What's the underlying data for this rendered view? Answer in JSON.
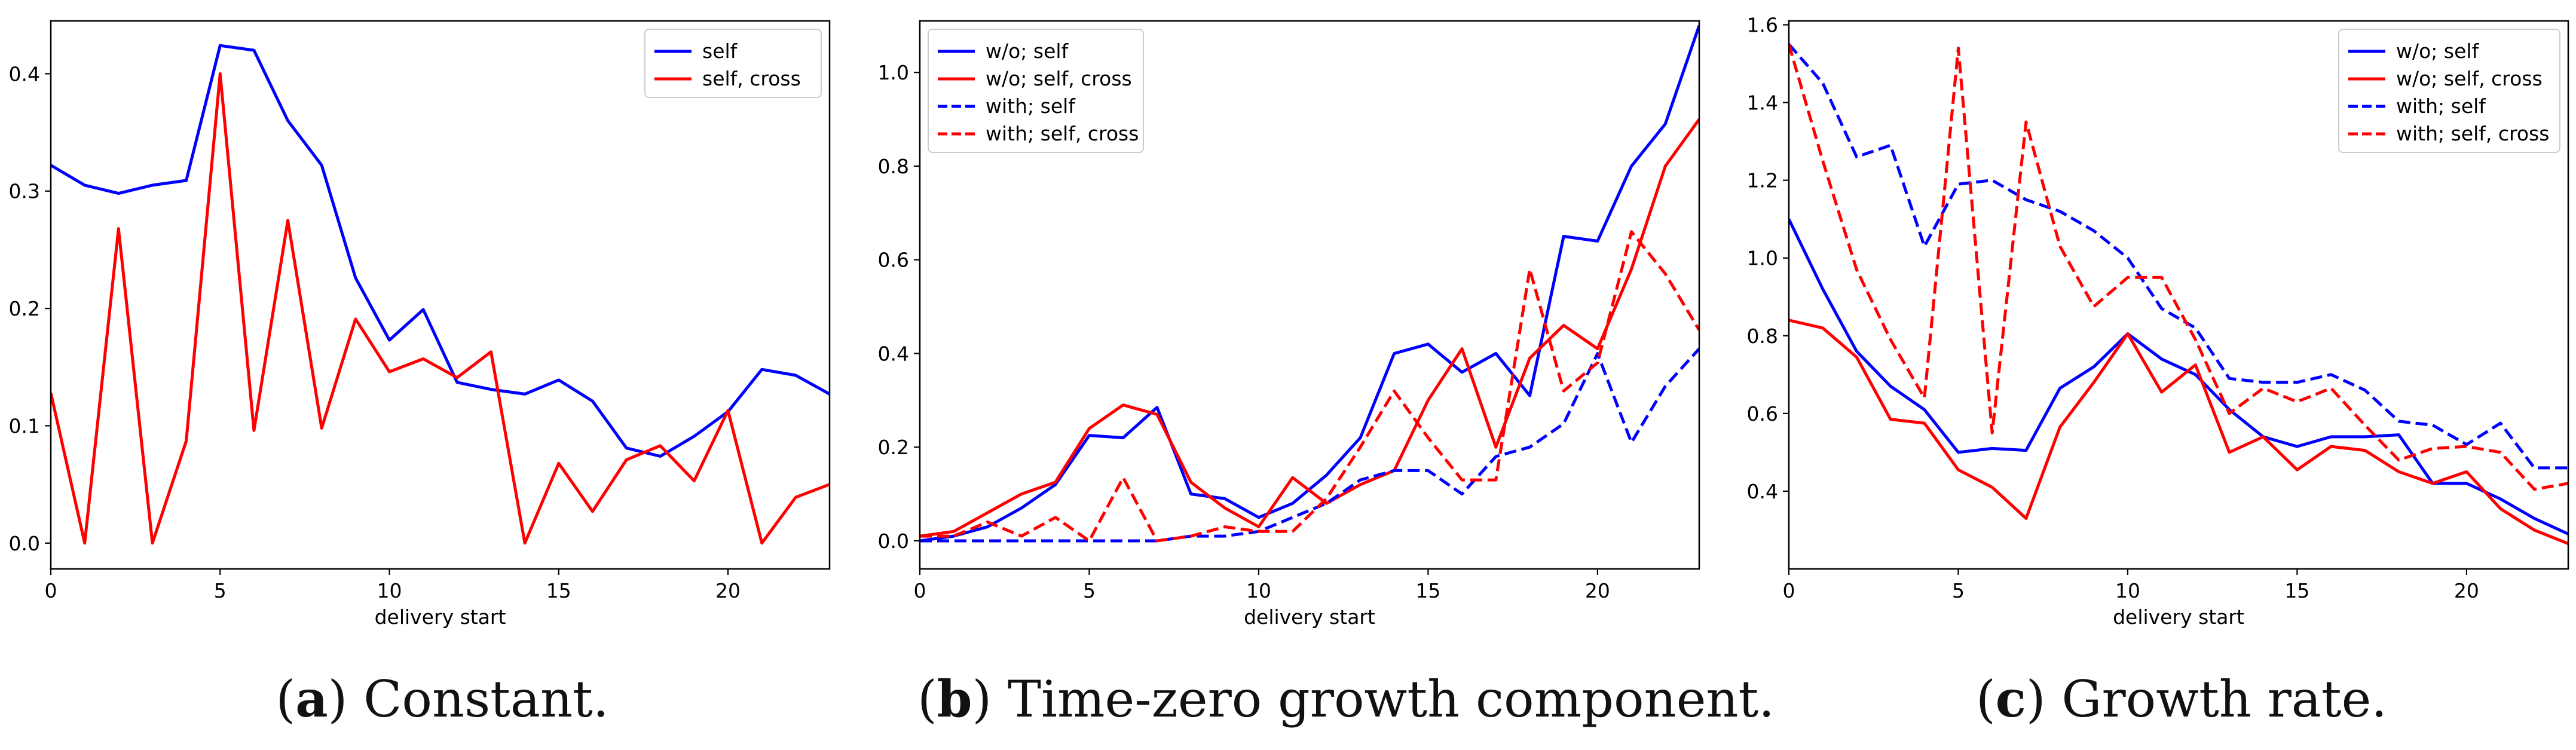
{
  "figure": {
    "captions": [
      {
        "label": "a",
        "text": " Constant."
      },
      {
        "label": "b",
        "text": " Time-zero growth component."
      },
      {
        "label": "c",
        "text": " Growth rate."
      }
    ]
  },
  "chart_data": [
    {
      "type": "line",
      "title": "",
      "xlabel": "delivery start",
      "ylabel": "",
      "xlim": [
        0,
        23
      ],
      "ylim": [
        -0.022,
        0.445
      ],
      "xticks": [
        0,
        5,
        10,
        15,
        20
      ],
      "yticks": [
        0.0,
        0.1,
        0.2,
        0.3,
        0.4
      ],
      "ytick_labels": [
        "0.0",
        "0.1",
        "0.2",
        "0.3",
        "0.4"
      ],
      "legend_position": "top-right",
      "x": [
        0,
        1,
        2,
        3,
        4,
        5,
        6,
        7,
        8,
        9,
        10,
        11,
        12,
        13,
        14,
        15,
        16,
        17,
        18,
        19,
        20,
        21,
        22,
        23
      ],
      "series": [
        {
          "name": "self",
          "color": "#0000ff",
          "dash": "solid",
          "values": [
            0.322,
            0.305,
            0.298,
            0.305,
            0.309,
            0.424,
            0.42,
            0.36,
            0.322,
            0.226,
            0.173,
            0.199,
            0.137,
            0.131,
            0.127,
            0.139,
            0.121,
            0.081,
            0.074,
            0.091,
            0.112,
            0.148,
            0.143,
            0.127
          ]
        },
        {
          "name": "self, cross",
          "color": "#ff0000",
          "dash": "solid",
          "values": [
            0.128,
            0.0,
            0.268,
            0.0,
            0.087,
            0.4,
            0.096,
            0.275,
            0.098,
            0.191,
            0.146,
            0.157,
            0.141,
            0.163,
            0.0,
            0.068,
            0.027,
            0.071,
            0.083,
            0.053,
            0.113,
            0.0,
            0.039,
            0.05
          ]
        }
      ]
    },
    {
      "type": "line",
      "title": "",
      "xlabel": "delivery start",
      "ylabel": "",
      "xlim": [
        0,
        23
      ],
      "ylim": [
        -0.06,
        1.11
      ],
      "xticks": [
        0,
        5,
        10,
        15,
        20
      ],
      "yticks": [
        0.0,
        0.2,
        0.4,
        0.6,
        0.8,
        1.0
      ],
      "ytick_labels": [
        "0.0",
        "0.2",
        "0.4",
        "0.6",
        "0.8",
        "1.0"
      ],
      "legend_position": "top-left",
      "x": [
        0,
        1,
        2,
        3,
        4,
        5,
        6,
        7,
        8,
        9,
        10,
        11,
        12,
        13,
        14,
        15,
        16,
        17,
        18,
        19,
        20,
        21,
        22,
        23
      ],
      "series": [
        {
          "name": "w/o; self",
          "color": "#0000ff",
          "dash": "solid",
          "values": [
            0.0,
            0.01,
            0.03,
            0.07,
            0.12,
            0.225,
            0.22,
            0.285,
            0.1,
            0.09,
            0.05,
            0.08,
            0.14,
            0.22,
            0.4,
            0.42,
            0.36,
            0.4,
            0.31,
            0.65,
            0.64,
            0.8,
            0.89,
            1.1
          ]
        },
        {
          "name": "w/o; self, cross",
          "color": "#ff0000",
          "dash": "solid",
          "values": [
            0.01,
            0.02,
            0.06,
            0.1,
            0.125,
            0.24,
            0.29,
            0.27,
            0.125,
            0.07,
            0.03,
            0.135,
            0.08,
            0.12,
            0.15,
            0.3,
            0.41,
            0.2,
            0.39,
            0.46,
            0.41,
            0.58,
            0.8,
            0.9
          ]
        },
        {
          "name": "with; self",
          "color": "#0000ff",
          "dash": "dashed",
          "values": [
            0.0,
            0.0,
            0.0,
            0.0,
            0.0,
            0.0,
            0.0,
            0.0,
            0.01,
            0.01,
            0.02,
            0.05,
            0.08,
            0.13,
            0.15,
            0.15,
            0.1,
            0.18,
            0.2,
            0.25,
            0.4,
            0.21,
            0.33,
            0.41
          ]
        },
        {
          "name": "with; self, cross",
          "color": "#ff0000",
          "dash": "dashed",
          "values": [
            0.01,
            0.01,
            0.04,
            0.01,
            0.05,
            0.0,
            0.135,
            0.0,
            0.01,
            0.03,
            0.02,
            0.02,
            0.09,
            0.2,
            0.32,
            0.22,
            0.13,
            0.13,
            0.58,
            0.32,
            0.38,
            0.66,
            0.57,
            0.45
          ]
        }
      ]
    },
    {
      "type": "line",
      "title": "",
      "xlabel": "delivery start",
      "ylabel": "",
      "xlim": [
        0,
        23
      ],
      "ylim": [
        0.2,
        1.61
      ],
      "xticks": [
        0,
        5,
        10,
        15,
        20
      ],
      "yticks": [
        0.4,
        0.6,
        0.8,
        1.0,
        1.2,
        1.4,
        1.6
      ],
      "ytick_labels": [
        "0.4",
        "0.6",
        "0.8",
        "1.0",
        "1.2",
        "1.4",
        "1.6"
      ],
      "legend_position": "top-right",
      "x": [
        0,
        1,
        2,
        3,
        4,
        5,
        6,
        7,
        8,
        9,
        10,
        11,
        12,
        13,
        14,
        15,
        16,
        17,
        18,
        19,
        20,
        21,
        22,
        23
      ],
      "series": [
        {
          "name": "w/o; self",
          "color": "#0000ff",
          "dash": "solid",
          "values": [
            1.1,
            0.92,
            0.76,
            0.67,
            0.61,
            0.5,
            0.51,
            0.505,
            0.665,
            0.72,
            0.805,
            0.74,
            0.7,
            0.61,
            0.54,
            0.515,
            0.54,
            0.54,
            0.545,
            0.42,
            0.42,
            0.38,
            0.33,
            0.29
          ]
        },
        {
          "name": "w/o; self, cross",
          "color": "#ff0000",
          "dash": "solid",
          "values": [
            0.84,
            0.82,
            0.745,
            0.585,
            0.575,
            0.455,
            0.41,
            0.33,
            0.565,
            0.68,
            0.805,
            0.655,
            0.725,
            0.5,
            0.54,
            0.455,
            0.515,
            0.505,
            0.45,
            0.42,
            0.45,
            0.355,
            0.3,
            0.265
          ]
        },
        {
          "name": "with; self",
          "color": "#0000ff",
          "dash": "dashed",
          "values": [
            1.55,
            1.45,
            1.26,
            1.29,
            1.03,
            1.19,
            1.2,
            1.15,
            1.12,
            1.07,
            1.0,
            0.87,
            0.82,
            0.69,
            0.68,
            0.68,
            0.7,
            0.66,
            0.58,
            0.57,
            0.52,
            0.575,
            0.46,
            0.46
          ]
        },
        {
          "name": "with; self, cross",
          "color": "#ff0000",
          "dash": "dashed",
          "values": [
            1.55,
            1.25,
            0.97,
            0.79,
            0.64,
            1.54,
            0.55,
            1.35,
            1.03,
            0.875,
            0.95,
            0.95,
            0.79,
            0.6,
            0.665,
            0.63,
            0.665,
            0.57,
            0.48,
            0.51,
            0.515,
            0.5,
            0.405,
            0.42
          ]
        }
      ]
    }
  ]
}
